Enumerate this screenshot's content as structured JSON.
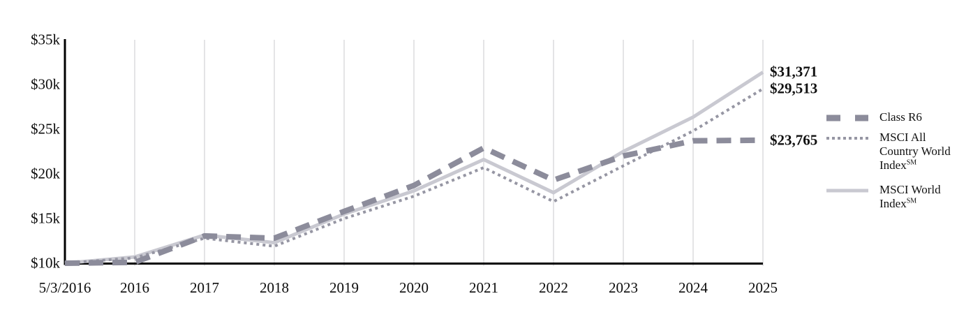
{
  "chart_data": {
    "type": "line",
    "title": "",
    "xlabel": "",
    "ylabel": "",
    "grid": "vertical-gridlines",
    "legend_position": "right",
    "x_categories": [
      "5/3/2016",
      "2016",
      "2017",
      "2018",
      "2019",
      "2020",
      "2021",
      "2022",
      "2023",
      "2024",
      "2025"
    ],
    "ylim": [
      10000,
      35000
    ],
    "y_ticks": [
      {
        "value": 10000,
        "label": "$10k"
      },
      {
        "value": 15000,
        "label": "$15k"
      },
      {
        "value": 20000,
        "label": "$20k"
      },
      {
        "value": 25000,
        "label": "$25k"
      },
      {
        "value": 30000,
        "label": "$30k"
      },
      {
        "value": 35000,
        "label": "$35k"
      }
    ],
    "series": [
      {
        "name": "Class R6",
        "name_suffix": "",
        "line_style": "dashed",
        "color": "#8C8C9B",
        "values": [
          10000,
          10100,
          13050,
          12800,
          15800,
          18700,
          22900,
          19300,
          22000,
          23700,
          23765
        ],
        "end_label": "$23,765"
      },
      {
        "name": "MSCI All Country World Index",
        "name_suffix": "SM",
        "line_style": "dotted",
        "color": "#9696A3",
        "values": [
          10000,
          10600,
          12800,
          11900,
          15000,
          17500,
          20700,
          16900,
          20900,
          24800,
          29513
        ],
        "end_label": "$29,513"
      },
      {
        "name": "MSCI World Index",
        "name_suffix": "SM",
        "line_style": "solid",
        "color": "#C9C9D1",
        "values": [
          10000,
          10700,
          13150,
          12300,
          15500,
          18100,
          21600,
          17900,
          22500,
          26350,
          31371
        ],
        "end_label": "$31,371"
      }
    ],
    "colors": {
      "gridline": "#DBDBDE",
      "axis": "#000000",
      "tick_text": "#0c0c0c",
      "end_label_text": "#111111"
    }
  }
}
